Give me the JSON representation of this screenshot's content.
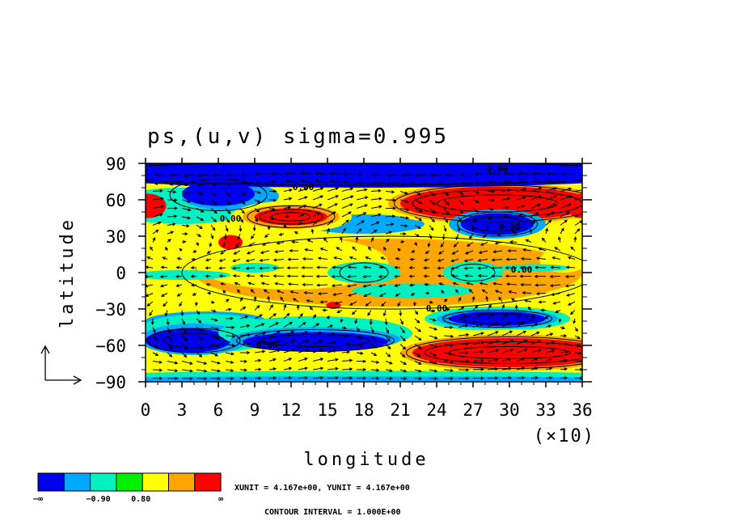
{
  "chart_data": {
    "type": "heatmap",
    "title": "ps,(u,v) sigma=0.995",
    "xlabel": "longitude",
    "ylabel": "latitude",
    "x_multiplier": "(×10)",
    "xlim": [
      0,
      36
    ],
    "ylim": [
      -90,
      90
    ],
    "x_ticks": [
      "0",
      "3",
      "6",
      "9",
      "12",
      "15",
      "18",
      "21",
      "24",
      "27",
      "30",
      "33",
      "36"
    ],
    "y_ticks": [
      "90",
      "60",
      "30",
      "0",
      "−30",
      "−60",
      "−90"
    ],
    "contour_labels": [
      "0.00",
      "0.00",
      "0.00",
      "0.00",
      "0.00",
      "0.00",
      "0.00"
    ],
    "legend": {
      "colors": [
        "#0000f0",
        "#00a8ff",
        "#00f0c0",
        "#00f000",
        "#ffff00",
        "#ffa500",
        "#ff0000"
      ],
      "labels": [
        "−∞",
        "−0.90",
        "0.80",
        "∞"
      ]
    },
    "units_text": "XUNIT = 4.167e+00, YUNIT = 4.167e+00",
    "contour_interval_text": "CONTOUR INTERVAL = 1.000E+00",
    "regions": [
      {
        "level": 2,
        "cx": 20,
        "cy": 0,
        "rx": 16,
        "ry": 28
      },
      {
        "level": 1,
        "cx": 12,
        "cy": 8,
        "rx": 8,
        "ry": 22
      },
      {
        "level": 1,
        "cx": 34.5,
        "cy": 10,
        "rx": 2,
        "ry": 10
      },
      {
        "level": -1,
        "cx": 18,
        "cy": 0,
        "rx": 3,
        "ry": 9
      },
      {
        "level": -1,
        "cx": 27,
        "cy": 0,
        "rx": 2.5,
        "ry": 9
      },
      {
        "level": -1,
        "cx": 9,
        "cy": 4,
        "rx": 2,
        "ry": 4
      },
      {
        "level": -1,
        "cx": 3,
        "cy": -2,
        "rx": 4,
        "ry": 4
      },
      {
        "level": -1,
        "cx": 32,
        "cy": 4,
        "rx": 3,
        "ry": 3
      },
      {
        "level": -1,
        "cx": 22,
        "cy": -15,
        "rx": 5,
        "ry": 6
      },
      {
        "level": -2,
        "cx": 18,
        "cy": 40,
        "rx": 5,
        "ry": 8
      },
      {
        "level": -2,
        "cx": 5,
        "cy": -40,
        "rx": 5,
        "ry": 8
      },
      {
        "level": -1,
        "cx": 3,
        "cy": 55,
        "rx": 6,
        "ry": 15
      },
      {
        "level": -2,
        "cx": 7,
        "cy": 63,
        "rx": 4,
        "ry": 12
      },
      {
        "level": -3,
        "cx": 6,
        "cy": 65,
        "rx": 3,
        "ry": 10
      },
      {
        "level": 1,
        "cx": 12,
        "cy": 46,
        "rx": 5,
        "ry": 13
      },
      {
        "level": 2,
        "cx": 12,
        "cy": 46,
        "rx": 4,
        "ry": 10
      },
      {
        "level": 3,
        "cx": 12,
        "cy": 46,
        "rx": 3,
        "ry": 7
      },
      {
        "level": 1,
        "cx": 29,
        "cy": 58,
        "rx": 10,
        "ry": 20
      },
      {
        "level": 2,
        "cx": 29,
        "cy": 57,
        "rx": 9,
        "ry": 17
      },
      {
        "level": 3,
        "cx": 29,
        "cy": 57,
        "rx": 8,
        "ry": 14
      },
      {
        "level": -2,
        "cx": 29,
        "cy": 40,
        "rx": 4,
        "ry": 12
      },
      {
        "level": -3,
        "cx": 29,
        "cy": 40,
        "rx": 3,
        "ry": 9
      },
      {
        "level": 3,
        "cx": 0.2,
        "cy": 55,
        "rx": 1.5,
        "ry": 10
      },
      {
        "level": 3,
        "cx": 35.8,
        "cy": 55,
        "rx": 1,
        "ry": 10
      },
      {
        "level": 3,
        "cx": 7,
        "cy": 25,
        "rx": 1,
        "ry": 6
      },
      {
        "level": 3,
        "cx": 15.5,
        "cy": -27,
        "rx": 0.6,
        "ry": 3
      },
      {
        "level": -1,
        "cx": 5,
        "cy": -50,
        "rx": 6,
        "ry": 16
      },
      {
        "level": -2,
        "cx": 4,
        "cy": -55,
        "rx": 4.5,
        "ry": 13
      },
      {
        "level": -3,
        "cx": 3.5,
        "cy": -56,
        "rx": 3.5,
        "ry": 10
      },
      {
        "level": -1,
        "cx": 14,
        "cy": -50,
        "rx": 8,
        "ry": 14
      },
      {
        "level": -2,
        "cx": 14,
        "cy": -55,
        "rx": 7,
        "ry": 10
      },
      {
        "level": -3,
        "cx": 14,
        "cy": -57,
        "rx": 6,
        "ry": 8
      },
      {
        "level": -1,
        "cx": 29,
        "cy": -38,
        "rx": 6,
        "ry": 10
      },
      {
        "level": -2,
        "cx": 29,
        "cy": -38,
        "rx": 5,
        "ry": 8
      },
      {
        "level": -3,
        "cx": 29,
        "cy": -38,
        "rx": 4,
        "ry": 6
      },
      {
        "level": 1,
        "cx": 30,
        "cy": -65,
        "rx": 10,
        "ry": 18
      },
      {
        "level": 2,
        "cx": 30,
        "cy": -66,
        "rx": 9,
        "ry": 15
      },
      {
        "level": 3,
        "cx": 30,
        "cy": -66,
        "rx": 8,
        "ry": 12
      },
      {
        "level": -3,
        "cx": 18,
        "cy": 82,
        "rx": 25,
        "ry": 12
      },
      {
        "level": -3,
        "cx": 6,
        "cy": 83,
        "rx": 8,
        "ry": 12
      },
      {
        "level": -3,
        "cx": 30,
        "cy": 84,
        "rx": 8,
        "ry": 7
      },
      {
        "level": -1,
        "cx": 18,
        "cy": -86,
        "rx": 25,
        "ry": 5
      },
      {
        "level": -2,
        "cx": 18,
        "cy": -88,
        "rx": 25,
        "ry": 2.5
      }
    ],
    "contours": [
      {
        "cx": 12,
        "cy": 46,
        "rx": 3.6,
        "ry": 9
      },
      {
        "cx": 12,
        "cy": 46,
        "rx": 2.6,
        "ry": 6
      },
      {
        "cx": 12,
        "cy": 46,
        "rx": 1.6,
        "ry": 3.5
      },
      {
        "cx": 29,
        "cy": 57,
        "rx": 8.5,
        "ry": 15
      },
      {
        "cx": 29,
        "cy": 57,
        "rx": 7,
        "ry": 11
      },
      {
        "cx": 29,
        "cy": 57,
        "rx": 5,
        "ry": 7
      },
      {
        "cx": 29,
        "cy": 40,
        "rx": 3.3,
        "ry": 10
      },
      {
        "cx": 29,
        "cy": 40,
        "rx": 2.2,
        "ry": 6
      },
      {
        "cx": 4,
        "cy": -56,
        "rx": 3.8,
        "ry": 10
      },
      {
        "cx": 4,
        "cy": -56,
        "rx": 2.5,
        "ry": 6
      },
      {
        "cx": 14,
        "cy": -56,
        "rx": 6.5,
        "ry": 9
      },
      {
        "cx": 14,
        "cy": -56,
        "rx": 4.5,
        "ry": 5
      },
      {
        "cx": 29,
        "cy": -38,
        "rx": 4.5,
        "ry": 7
      },
      {
        "cx": 29,
        "cy": -38,
        "rx": 3,
        "ry": 4
      },
      {
        "cx": 30,
        "cy": -66,
        "rx": 8.5,
        "ry": 13
      },
      {
        "cx": 30,
        "cy": -66,
        "rx": 7,
        "ry": 9
      },
      {
        "cx": 30,
        "cy": -66,
        "rx": 5,
        "ry": 5
      },
      {
        "cx": 18,
        "cy": 0,
        "rx": 2,
        "ry": 8
      },
      {
        "cx": 27,
        "cy": 0,
        "rx": 1.8,
        "ry": 7
      },
      {
        "cx": 20,
        "cy": 0,
        "rx": 17,
        "ry": 30
      },
      {
        "cx": 6,
        "cy": 64,
        "rx": 4,
        "ry": 13
      },
      {
        "cx": 18,
        "cy": 82,
        "rx": 22,
        "ry": 10
      }
    ],
    "contour_label_positions": [
      {
        "x": 7,
        "y": 42
      },
      {
        "x": 30,
        "y": 35
      },
      {
        "x": 31,
        "y": 0
      },
      {
        "x": 24,
        "y": -32
      },
      {
        "x": 10,
        "y": -62
      },
      {
        "x": 13,
        "y": 68
      },
      {
        "x": 29,
        "y": 83
      }
    ]
  }
}
